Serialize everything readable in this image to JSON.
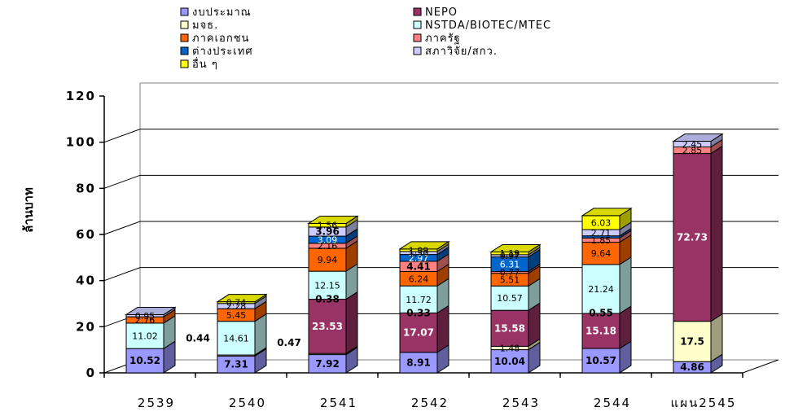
{
  "chart_data": {
    "type": "bar",
    "stacked": true,
    "ylabel": "ล้านบาท",
    "ylim": [
      0,
      120
    ],
    "yticks": [
      0,
      20,
      40,
      60,
      80,
      100,
      120
    ],
    "grid": true,
    "legend_position": "top-left",
    "categories": [
      "2539",
      "2540",
      "2541",
      "2542",
      "2543",
      "2544",
      "แผน2545"
    ],
    "series": [
      {
        "name": "งบประมาณ",
        "color": "#9999FF",
        "values": [
          10.52,
          7.31,
          7.92,
          8.91,
          10.04,
          10.57,
          4.86
        ]
      },
      {
        "name": "มจธ.",
        "color": "#FFFFCC",
        "values": [
          0,
          0.44,
          0.47,
          0,
          1.48,
          0,
          17.5
        ]
      },
      {
        "name": "NEPO",
        "color": "#993366",
        "values": [
          0,
          0,
          23.53,
          17.07,
          15.58,
          15.18,
          72.73
        ]
      },
      {
        "name": "NSTDA/BIOTEC/MTEC",
        "color": "#CCFFFF",
        "values": [
          11.02,
          14.61,
          12.15,
          11.72,
          10.57,
          21.24,
          0
        ]
      },
      {
        "name": "ภาคเอกชน",
        "color": "#FF6600",
        "values": [
          2.76,
          5.45,
          9.94,
          6.24,
          5.51,
          9.64,
          0
        ]
      },
      {
        "name": "ภาครัฐ",
        "color": "#FF8080",
        "values": [
          0,
          0,
          2.16,
          4.41,
          0.77,
          1.85,
          2.85
        ]
      },
      {
        "name": "ต่างประเทศ",
        "color": "#0066CC",
        "values": [
          0,
          0,
          3.09,
          2.97,
          6.31,
          0.92,
          0
        ]
      },
      {
        "name": "สภาวิจัย/สกว.",
        "color": "#CCCCFF",
        "values": [
          0.95,
          2.28,
          3.96,
          1.3,
          0.97,
          2.71,
          2.45
        ]
      },
      {
        "name": "อื่น ๆ",
        "color": "#FFFF00",
        "values": [
          0,
          0.74,
          1.56,
          1.09,
          1.19,
          6.03,
          0
        ]
      }
    ],
    "labels": [
      {
        "cat": 0,
        "series": 0,
        "text": "10.52",
        "bold": true
      },
      {
        "cat": 0,
        "series": 3,
        "text": "11.02",
        "bold": false
      },
      {
        "cat": 0,
        "series": 4,
        "text": "2.76",
        "bold": false
      },
      {
        "cat": 0,
        "series": 7,
        "text": "0.95",
        "bold": false
      },
      {
        "cat": 1,
        "series": 0,
        "text": "7.31",
        "bold": true
      },
      {
        "cat": 1,
        "series": 3,
        "text": "14.61",
        "bold": false
      },
      {
        "cat": 1,
        "series": 4,
        "text": "5.45",
        "bold": false
      },
      {
        "cat": 1,
        "series": 7,
        "text": "2.28",
        "bold": false
      },
      {
        "cat": 1,
        "series": 8,
        "text": "0.74",
        "bold": false
      },
      {
        "cat": 2,
        "series": 0,
        "text": "7.92",
        "bold": true
      },
      {
        "cat": 2,
        "series": 2,
        "text": "23.53",
        "bold": true
      },
      {
        "cat": 2,
        "series": 3,
        "text": "12.15",
        "bold": false
      },
      {
        "cat": 2,
        "series": 4,
        "text": "9.94",
        "bold": false
      },
      {
        "cat": 2,
        "series": 5,
        "text": "2.16",
        "bold": false
      },
      {
        "cat": 2,
        "series": 6,
        "text": "3.09",
        "bold": false
      },
      {
        "cat": 2,
        "series": 7,
        "text": "3.96",
        "bold": true
      },
      {
        "cat": 2,
        "series": 8,
        "text": "1.56",
        "bold": false
      },
      {
        "cat": 3,
        "series": 0,
        "text": "8.91",
        "bold": true
      },
      {
        "cat": 3,
        "series": 2,
        "text": "17.07",
        "bold": true
      },
      {
        "cat": 3,
        "series": 3,
        "text": "11.72",
        "bold": false
      },
      {
        "cat": 3,
        "series": 4,
        "text": "6.24",
        "bold": false
      },
      {
        "cat": 3,
        "series": 5,
        "text": "4.41",
        "bold": true
      },
      {
        "cat": 3,
        "series": 6,
        "text": "2.97",
        "bold": false
      },
      {
        "cat": 3,
        "series": 7,
        "text": "1.30",
        "bold": false
      },
      {
        "cat": 3,
        "series": 8,
        "text": "1.09",
        "bold": false
      },
      {
        "cat": 4,
        "series": 0,
        "text": "10.04",
        "bold": true
      },
      {
        "cat": 4,
        "series": 1,
        "text": "1.48",
        "bold": false
      },
      {
        "cat": 4,
        "series": 2,
        "text": "15.58",
        "bold": true
      },
      {
        "cat": 4,
        "series": 3,
        "text": "10.57",
        "bold": false
      },
      {
        "cat": 4,
        "series": 4,
        "text": "5.51",
        "bold": false
      },
      {
        "cat": 4,
        "series": 5,
        "text": "0.77",
        "bold": false
      },
      {
        "cat": 4,
        "series": 6,
        "text": "6.31",
        "bold": false
      },
      {
        "cat": 4,
        "series": 7,
        "text": "0.97",
        "bold": false
      },
      {
        "cat": 4,
        "series": 8,
        "text": "1.19",
        "bold": false
      },
      {
        "cat": 5,
        "series": 0,
        "text": "10.57",
        "bold": true
      },
      {
        "cat": 5,
        "series": 2,
        "text": "15.18",
        "bold": true
      },
      {
        "cat": 5,
        "series": 3,
        "text": "21.24",
        "bold": false
      },
      {
        "cat": 5,
        "series": 4,
        "text": "9.64",
        "bold": false
      },
      {
        "cat": 5,
        "series": 5,
        "text": "1.85",
        "bold": false
      },
      {
        "cat": 5,
        "series": 7,
        "text": "2.71",
        "bold": false
      },
      {
        "cat": 5,
        "series": 8,
        "text": "6.03",
        "bold": false
      },
      {
        "cat": 6,
        "series": 0,
        "text": "4.86",
        "bold": true
      },
      {
        "cat": 6,
        "series": 1,
        "text": "17.5",
        "bold": true
      },
      {
        "cat": 6,
        "series": 2,
        "text": "72.73",
        "bold": true
      },
      {
        "cat": 6,
        "series": 5,
        "text": "2.85",
        "bold": false
      },
      {
        "cat": 6,
        "series": 7,
        "text": "2.45",
        "bold": false
      }
    ],
    "annotations": [
      {
        "cat": 1,
        "text": "0.44",
        "y": 15
      },
      {
        "cat": 2,
        "text": "0.47",
        "y": 13
      },
      {
        "cat": 2,
        "text": "0.38",
        "y": 32
      },
      {
        "cat": 3,
        "text": "0.33",
        "y": 26
      },
      {
        "cat": 5,
        "text": "0.55",
        "y": 26
      }
    ]
  }
}
